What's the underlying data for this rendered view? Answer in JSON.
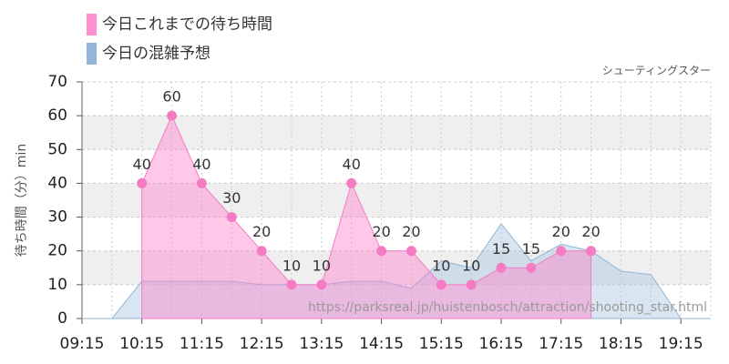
{
  "chart_data": {
    "type": "area",
    "subtitle": "シューティングスター",
    "y_label": "待ち時間（分）min",
    "source": "https://parksreal.jp/huistenbosch/attraction/shooting_star.html",
    "series": [
      {
        "name": "今日これまでの待ち時間",
        "color": "#f57cc4",
        "x": [
          10.25,
          10.75,
          11.25,
          11.75,
          12.25,
          12.75,
          13.25,
          13.75,
          14.25,
          14.75,
          15.25,
          15.75,
          16.25,
          16.75,
          17.25,
          17.75
        ],
        "values": [
          40,
          60,
          40,
          30,
          20,
          10,
          10,
          40,
          20,
          20,
          10,
          10,
          15,
          15,
          20,
          20
        ]
      },
      {
        "name": "今日の混雑予想",
        "color": "#93b6d6",
        "x": [
          9.25,
          9.75,
          10.25,
          10.75,
          11.25,
          11.75,
          12.25,
          12.75,
          13.25,
          13.75,
          14.25,
          14.75,
          15.25,
          15.75,
          16.25,
          16.75,
          17.25,
          17.75,
          18.25,
          18.75,
          19.25,
          19.75
        ],
        "values": [
          0,
          0,
          11,
          11,
          11,
          11,
          10,
          10,
          10,
          11,
          11,
          9,
          17,
          15,
          28,
          17,
          22,
          20,
          14,
          13,
          0,
          0
        ]
      }
    ],
    "xlim": [
      9.25,
      19.75
    ],
    "xticks": [
      {
        "value": 9.25,
        "label": "09:15"
      },
      {
        "value": 10.25,
        "label": "10:15"
      },
      {
        "value": 11.25,
        "label": "11:15"
      },
      {
        "value": 12.25,
        "label": "12:15"
      },
      {
        "value": 13.25,
        "label": "13:15"
      },
      {
        "value": 14.25,
        "label": "14:15"
      },
      {
        "value": 15.25,
        "label": "15:15"
      },
      {
        "value": 16.25,
        "label": "16:15"
      },
      {
        "value": 17.25,
        "label": "17:15"
      },
      {
        "value": 18.25,
        "label": "18:15"
      },
      {
        "value": 19.25,
        "label": "19:15"
      }
    ],
    "ylim": [
      0,
      70
    ],
    "yticks": [
      0,
      10,
      20,
      30,
      40,
      50,
      60,
      70
    ],
    "grid": true
  }
}
